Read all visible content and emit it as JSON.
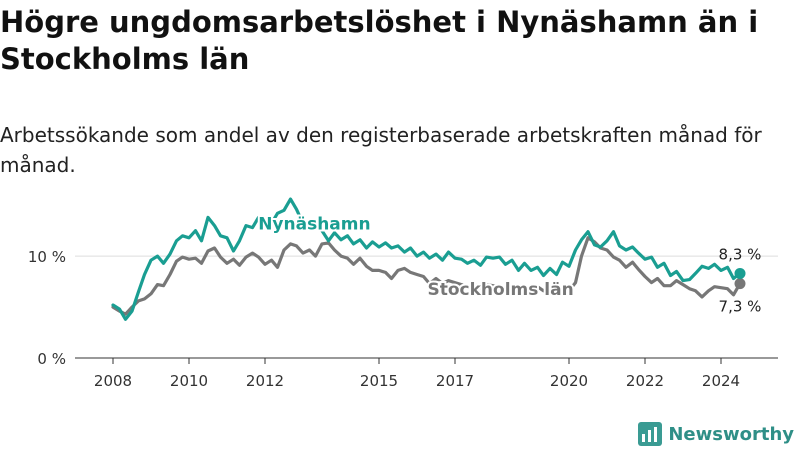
{
  "title": "Högre ungdomsarbetslöshet i Nynäshamn än i Stockholms län",
  "subtitle": "Arbetssökande som andel av den registerbaserade arbetskraften månad för månad.",
  "brand": {
    "name": "Newsworthy",
    "icon": "bar-chart-logo-icon"
  },
  "colors": {
    "nynashamn": "#1a9e92",
    "stockholm": "#777777",
    "grid": "#dddddd",
    "axis": "#333333"
  },
  "chart_data": {
    "type": "line",
    "yticks": [
      {
        "value": 0,
        "label": "0 %"
      },
      {
        "value": 10,
        "label": "10 %"
      }
    ],
    "xticks": [
      {
        "value": 2008,
        "label": "2008"
      },
      {
        "value": 2010,
        "label": "2010"
      },
      {
        "value": 2012,
        "label": "2012"
      },
      {
        "value": 2015,
        "label": "2015"
      },
      {
        "value": 2017,
        "label": "2017"
      },
      {
        "value": 2020,
        "label": "2020"
      },
      {
        "value": 2022,
        "label": "2022"
      },
      {
        "value": 2024,
        "label": "2024"
      }
    ],
    "xlim": [
      2007.0,
      2025.5
    ],
    "ylim": [
      0,
      16
    ],
    "series": [
      {
        "name": "Nynäshamn",
        "color": "#1a9e92",
        "end_label": "8,3 %",
        "points": [
          [
            2008.0,
            5.2
          ],
          [
            2008.17,
            4.8
          ],
          [
            2008.33,
            3.8
          ],
          [
            2008.5,
            4.6
          ],
          [
            2008.67,
            6.5
          ],
          [
            2008.83,
            8.2
          ],
          [
            2009.0,
            9.6
          ],
          [
            2009.17,
            10.0
          ],
          [
            2009.33,
            9.3
          ],
          [
            2009.5,
            10.2
          ],
          [
            2009.67,
            11.5
          ],
          [
            2009.83,
            12.0
          ],
          [
            2010.0,
            11.8
          ],
          [
            2010.17,
            12.5
          ],
          [
            2010.33,
            11.5
          ],
          [
            2010.5,
            13.8
          ],
          [
            2010.67,
            13.0
          ],
          [
            2010.83,
            12.0
          ],
          [
            2011.0,
            11.8
          ],
          [
            2011.17,
            10.5
          ],
          [
            2011.33,
            11.5
          ],
          [
            2011.5,
            13.0
          ],
          [
            2011.67,
            12.8
          ],
          [
            2011.83,
            13.8
          ],
          [
            2012.0,
            12.8
          ],
          [
            2012.17,
            13.2
          ],
          [
            2012.33,
            14.2
          ],
          [
            2012.5,
            14.5
          ],
          [
            2012.67,
            15.6
          ],
          [
            2012.83,
            14.6
          ],
          [
            2013.0,
            13.2
          ],
          [
            2013.17,
            12.8
          ],
          [
            2013.33,
            13.2
          ],
          [
            2013.5,
            12.5
          ],
          [
            2013.67,
            11.5
          ],
          [
            2013.83,
            12.3
          ],
          [
            2014.0,
            11.6
          ],
          [
            2014.17,
            12.0
          ],
          [
            2014.33,
            11.2
          ],
          [
            2014.5,
            11.6
          ],
          [
            2014.67,
            10.8
          ],
          [
            2014.83,
            11.4
          ],
          [
            2015.0,
            10.9
          ],
          [
            2015.17,
            11.3
          ],
          [
            2015.33,
            10.8
          ],
          [
            2015.5,
            11.0
          ],
          [
            2015.67,
            10.4
          ],
          [
            2015.83,
            10.8
          ],
          [
            2016.0,
            10.0
          ],
          [
            2016.17,
            10.4
          ],
          [
            2016.33,
            9.8
          ],
          [
            2016.5,
            10.2
          ],
          [
            2016.67,
            9.6
          ],
          [
            2016.83,
            10.4
          ],
          [
            2017.0,
            9.8
          ],
          [
            2017.17,
            9.7
          ],
          [
            2017.33,
            9.3
          ],
          [
            2017.5,
            9.6
          ],
          [
            2017.67,
            9.1
          ],
          [
            2017.83,
            9.9
          ],
          [
            2018.0,
            9.8
          ],
          [
            2018.17,
            9.9
          ],
          [
            2018.33,
            9.2
          ],
          [
            2018.5,
            9.6
          ],
          [
            2018.67,
            8.6
          ],
          [
            2018.83,
            9.3
          ],
          [
            2019.0,
            8.6
          ],
          [
            2019.17,
            8.9
          ],
          [
            2019.33,
            8.1
          ],
          [
            2019.5,
            8.8
          ],
          [
            2019.67,
            8.2
          ],
          [
            2019.83,
            9.4
          ],
          [
            2020.0,
            9.0
          ],
          [
            2020.17,
            10.6
          ],
          [
            2020.33,
            11.6
          ],
          [
            2020.5,
            12.4
          ],
          [
            2020.67,
            11.1
          ],
          [
            2020.83,
            10.9
          ],
          [
            2021.0,
            11.5
          ],
          [
            2021.17,
            12.4
          ],
          [
            2021.33,
            11.0
          ],
          [
            2021.5,
            10.6
          ],
          [
            2021.67,
            10.9
          ],
          [
            2021.83,
            10.3
          ],
          [
            2022.0,
            9.7
          ],
          [
            2022.17,
            9.9
          ],
          [
            2022.33,
            8.9
          ],
          [
            2022.5,
            9.3
          ],
          [
            2022.67,
            8.1
          ],
          [
            2022.83,
            8.5
          ],
          [
            2023.0,
            7.6
          ],
          [
            2023.17,
            7.7
          ],
          [
            2023.33,
            8.3
          ],
          [
            2023.5,
            9.0
          ],
          [
            2023.67,
            8.8
          ],
          [
            2023.83,
            9.2
          ],
          [
            2024.0,
            8.6
          ],
          [
            2024.17,
            8.9
          ],
          [
            2024.33,
            7.8
          ],
          [
            2024.5,
            8.3
          ]
        ]
      },
      {
        "name": "Stockholms län",
        "color": "#777777",
        "end_label": "7,3 %",
        "points": [
          [
            2008.0,
            5.0
          ],
          [
            2008.17,
            4.6
          ],
          [
            2008.33,
            4.3
          ],
          [
            2008.5,
            5.0
          ],
          [
            2008.67,
            5.6
          ],
          [
            2008.83,
            5.8
          ],
          [
            2009.0,
            6.3
          ],
          [
            2009.17,
            7.2
          ],
          [
            2009.33,
            7.1
          ],
          [
            2009.5,
            8.2
          ],
          [
            2009.67,
            9.5
          ],
          [
            2009.83,
            9.9
          ],
          [
            2010.0,
            9.7
          ],
          [
            2010.17,
            9.8
          ],
          [
            2010.33,
            9.3
          ],
          [
            2010.5,
            10.5
          ],
          [
            2010.67,
            10.8
          ],
          [
            2010.83,
            9.9
          ],
          [
            2011.0,
            9.3
          ],
          [
            2011.17,
            9.7
          ],
          [
            2011.33,
            9.1
          ],
          [
            2011.5,
            9.9
          ],
          [
            2011.67,
            10.3
          ],
          [
            2011.83,
            9.9
          ],
          [
            2012.0,
            9.2
          ],
          [
            2012.17,
            9.6
          ],
          [
            2012.33,
            8.9
          ],
          [
            2012.5,
            10.6
          ],
          [
            2012.67,
            11.2
          ],
          [
            2012.83,
            11.0
          ],
          [
            2013.0,
            10.3
          ],
          [
            2013.17,
            10.6
          ],
          [
            2013.33,
            10.0
          ],
          [
            2013.5,
            11.2
          ],
          [
            2013.67,
            11.3
          ],
          [
            2013.83,
            10.6
          ],
          [
            2014.0,
            10.0
          ],
          [
            2014.17,
            9.8
          ],
          [
            2014.33,
            9.2
          ],
          [
            2014.5,
            9.8
          ],
          [
            2014.67,
            9.0
          ],
          [
            2014.83,
            8.6
          ],
          [
            2015.0,
            8.6
          ],
          [
            2015.17,
            8.4
          ],
          [
            2015.33,
            7.8
          ],
          [
            2015.5,
            8.6
          ],
          [
            2015.67,
            8.8
          ],
          [
            2015.83,
            8.4
          ],
          [
            2016.0,
            8.2
          ],
          [
            2016.17,
            8.0
          ],
          [
            2016.33,
            7.3
          ],
          [
            2016.5,
            7.8
          ],
          [
            2016.67,
            7.3
          ],
          [
            2016.83,
            7.6
          ],
          [
            2017.0,
            7.4
          ],
          [
            2017.17,
            7.2
          ],
          [
            2017.33,
            6.9
          ],
          [
            2017.5,
            7.2
          ],
          [
            2017.67,
            6.9
          ],
          [
            2017.83,
            7.2
          ],
          [
            2018.0,
            7.1
          ],
          [
            2018.17,
            7.0
          ],
          [
            2018.33,
            6.7
          ],
          [
            2018.5,
            7.0
          ],
          [
            2018.67,
            6.6
          ],
          [
            2018.83,
            6.9
          ],
          [
            2019.0,
            6.8
          ],
          [
            2019.17,
            7.0
          ],
          [
            2019.33,
            6.6
          ],
          [
            2019.5,
            7.0
          ],
          [
            2019.67,
            6.8
          ],
          [
            2019.83,
            6.6
          ],
          [
            2020.0,
            6.6
          ],
          [
            2020.17,
            7.4
          ],
          [
            2020.33,
            10.0
          ],
          [
            2020.5,
            11.8
          ],
          [
            2020.67,
            11.4
          ],
          [
            2020.83,
            10.8
          ],
          [
            2021.0,
            10.6
          ],
          [
            2021.17,
            9.9
          ],
          [
            2021.33,
            9.6
          ],
          [
            2021.5,
            8.9
          ],
          [
            2021.67,
            9.4
          ],
          [
            2021.83,
            8.7
          ],
          [
            2022.0,
            8.0
          ],
          [
            2022.17,
            7.4
          ],
          [
            2022.33,
            7.8
          ],
          [
            2022.5,
            7.1
          ],
          [
            2022.67,
            7.1
          ],
          [
            2022.83,
            7.6
          ],
          [
            2023.0,
            7.2
          ],
          [
            2023.17,
            6.8
          ],
          [
            2023.33,
            6.6
          ],
          [
            2023.5,
            6.0
          ],
          [
            2023.67,
            6.6
          ],
          [
            2023.83,
            7.0
          ],
          [
            2024.0,
            6.9
          ],
          [
            2024.17,
            6.8
          ],
          [
            2024.33,
            6.2
          ],
          [
            2024.5,
            7.3
          ]
        ]
      }
    ]
  }
}
